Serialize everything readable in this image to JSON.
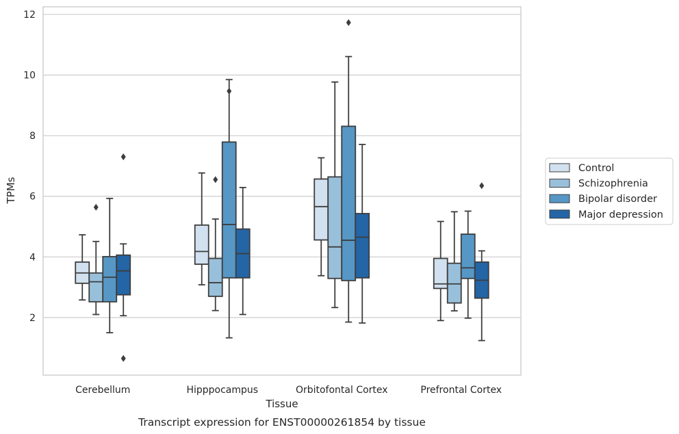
{
  "chart_data": {
    "type": "box",
    "title": "",
    "caption": "Transcript expression for ENST00000261854 by tissue",
    "xlabel": "Tissue",
    "ylabel": "TPMs",
    "ylim": [
      0.1,
      12.25
    ],
    "yticks": [
      2,
      4,
      6,
      8,
      10,
      12
    ],
    "grid": "horizontal",
    "legend_position": "right",
    "categories": [
      "Cerebellum",
      "Hipppocampus",
      "Orbitofontal Cortex",
      "Prefrontal Cortex"
    ],
    "series": [
      {
        "name": "Control",
        "color": "#d2e1ef",
        "boxes": [
          {
            "whislo": 2.58,
            "q1": 3.13,
            "med": 3.47,
            "q3": 3.83,
            "whishi": 4.73,
            "fliers": []
          },
          {
            "whislo": 3.08,
            "q1": 3.76,
            "med": 4.18,
            "q3": 5.05,
            "whishi": 6.77,
            "fliers": []
          },
          {
            "whislo": 3.38,
            "q1": 4.56,
            "med": 5.66,
            "q3": 6.57,
            "whishi": 7.27,
            "fliers": []
          },
          {
            "whislo": 1.9,
            "q1": 2.96,
            "med": 3.11,
            "q3": 3.95,
            "whishi": 5.17,
            "fliers": []
          }
        ]
      },
      {
        "name": "Schizophrenia",
        "color": "#99c0db",
        "boxes": [
          {
            "whislo": 2.1,
            "q1": 2.52,
            "med": 3.18,
            "q3": 3.47,
            "whishi": 4.51,
            "fliers": [
              5.64
            ]
          },
          {
            "whislo": 2.23,
            "q1": 2.7,
            "med": 3.15,
            "q3": 3.95,
            "whishi": 5.25,
            "fliers": [
              6.55
            ]
          },
          {
            "whislo": 2.33,
            "q1": 3.29,
            "med": 4.33,
            "q3": 6.64,
            "whishi": 9.77,
            "fliers": []
          },
          {
            "whislo": 2.22,
            "q1": 2.48,
            "med": 3.11,
            "q3": 3.79,
            "whishi": 5.49,
            "fliers": []
          }
        ]
      },
      {
        "name": "Bipolar disorder",
        "color": "#5697c5",
        "boxes": [
          {
            "whislo": 1.5,
            "q1": 2.52,
            "med": 3.33,
            "q3": 4.01,
            "whishi": 5.93,
            "fliers": []
          },
          {
            "whislo": 1.33,
            "q1": 3.31,
            "med": 5.07,
            "q3": 7.79,
            "whishi": 9.85,
            "fliers": [
              9.47
            ]
          },
          {
            "whislo": 1.85,
            "q1": 3.22,
            "med": 4.55,
            "q3": 8.31,
            "whishi": 10.61,
            "fliers": [
              11.73
            ]
          },
          {
            "whislo": 1.98,
            "q1": 3.29,
            "med": 3.64,
            "q3": 4.75,
            "whishi": 5.51,
            "fliers": []
          }
        ]
      },
      {
        "name": "Major depression",
        "color": "#2465a6",
        "boxes": [
          {
            "whislo": 2.06,
            "q1": 2.75,
            "med": 3.54,
            "q3": 4.06,
            "whishi": 4.43,
            "fliers": [
              7.3,
              0.65
            ]
          },
          {
            "whislo": 2.1,
            "q1": 3.31,
            "med": 4.11,
            "q3": 4.92,
            "whishi": 6.29,
            "fliers": []
          },
          {
            "whislo": 1.82,
            "q1": 3.31,
            "med": 4.65,
            "q3": 5.43,
            "whishi": 7.71,
            "fliers": []
          },
          {
            "whislo": 1.24,
            "q1": 2.64,
            "med": 3.23,
            "q3": 3.83,
            "whishi": 4.2,
            "fliers": [
              6.35
            ]
          }
        ]
      }
    ]
  }
}
